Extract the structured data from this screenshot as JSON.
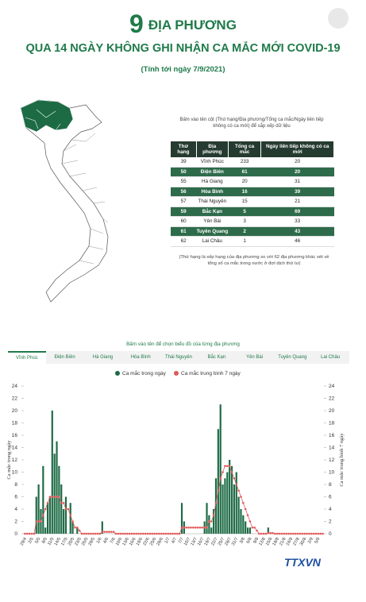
{
  "header": {
    "number": "9",
    "title_rest": "ĐỊA PHƯƠNG",
    "subtitle": "QUA 14 NGÀY KHÔNG GHI NHẬN CA MẮC MỚI COVID-19",
    "date": "(Tính tới ngày 7/9/2021)"
  },
  "table": {
    "instruction": "Bấm vào tên cột (Thứ hạng/Địa phương/Tổng ca mắc/Ngày liên tiếp không có ca mới) để sắp xếp dữ liệu",
    "columns": [
      "Thứ hạng",
      "Địa phương",
      "Tổng ca mắc",
      "Ngày liên tiếp không có ca mới"
    ],
    "rows": [
      [
        39,
        "Vĩnh Phúc",
        233,
        20
      ],
      [
        50,
        "Điện Biên",
        61,
        20
      ],
      [
        55,
        "Hà Giang",
        20,
        31
      ],
      [
        56,
        "Hòa Bình",
        16,
        39
      ],
      [
        57,
        "Thái Nguyên",
        15,
        21
      ],
      [
        59,
        "Bắc Kạn",
        5,
        69
      ],
      [
        60,
        "Yên Bái",
        3,
        33
      ],
      [
        61,
        "Tuyên Quang",
        2,
        43
      ],
      [
        62,
        "Lai Châu",
        1,
        46
      ]
    ],
    "note": "(Thứ hạng là xếp hạng của địa phương so với 62 địa phương khác xét về tổng số ca mắc trong nước ở đợt dịch thứ tư)"
  },
  "chart_section": {
    "instruction": "Bấm vào tên để chọn biểu đồ của từng địa phương",
    "tabs": [
      "Vĩnh Phúc",
      "Điện Biên",
      "Hà Giang",
      "Hòa Bình",
      "Thái Nguyên",
      "Bắc Kạn",
      "Yên Bái",
      "Tuyên Quang",
      "Lai Châu"
    ]
  },
  "logo": "TTXVN",
  "chart_data": {
    "type": "bar",
    "ylabel": "Ca mắc trong ngày",
    "y2label": "Ca mắc trung bình 7 ngày",
    "categories": [
      "29/4",
      null,
      null,
      "2/5",
      null,
      null,
      "5/5",
      null,
      null,
      "8/5",
      null,
      null,
      "11/5",
      null,
      null,
      "14/5",
      null,
      null,
      "17/5",
      null,
      null,
      "20/5",
      null,
      null,
      "23/5",
      null,
      null,
      "26/5",
      null,
      null,
      "29/5",
      null,
      null,
      "1/6",
      null,
      null,
      "4/6",
      null,
      null,
      "7/6",
      null,
      null,
      "10/6",
      null,
      null,
      "13/6",
      null,
      null,
      "16/6",
      null,
      null,
      "19/6",
      null,
      null,
      "22/6",
      null,
      null,
      "25/6",
      null,
      null,
      "28/6",
      null,
      null,
      "1/7",
      null,
      null,
      "4/7",
      null,
      null,
      "7/7",
      null,
      null,
      "10/7",
      null,
      null,
      "13/7",
      null,
      null,
      "16/7",
      null,
      null,
      "19/7",
      null,
      null,
      "22/7",
      null,
      null,
      "25/7",
      null,
      null,
      "28/7",
      null,
      null,
      "31/7",
      null,
      null,
      "3/8",
      null,
      null,
      "6/8",
      null,
      null,
      "9/8",
      null,
      null,
      "12/8",
      null,
      null,
      "15/8",
      null,
      null,
      "18/8",
      null,
      null,
      "21/8",
      null,
      null,
      "24/8",
      null,
      null,
      "27/8",
      null,
      null,
      "30/8",
      null,
      null,
      "2/9",
      null,
      null,
      "5/9",
      null,
      null
    ],
    "series": [
      {
        "name": "Ca mắc trong ngày",
        "color": "#1d6b45",
        "type": "bar",
        "values": [
          0,
          0,
          0,
          0,
          0,
          6,
          8,
          4,
          11,
          1,
          5,
          6,
          20,
          13,
          15,
          11,
          8,
          4,
          6,
          0,
          5,
          2,
          0,
          1,
          0,
          0,
          0,
          0,
          0,
          0,
          0,
          0,
          0,
          0,
          2,
          0,
          0,
          0,
          0,
          0,
          0,
          0,
          0,
          0,
          0,
          0,
          0,
          0,
          0,
          0,
          0,
          0,
          0,
          0,
          0,
          0,
          0,
          0,
          0,
          0,
          0,
          0,
          0,
          0,
          0,
          0,
          0,
          0,
          0,
          5,
          2,
          0,
          0,
          0,
          0,
          0,
          0,
          0,
          0,
          2,
          5,
          3,
          1,
          4,
          9,
          17,
          21,
          8,
          9,
          10,
          12,
          11,
          8,
          10,
          6,
          4,
          3,
          2,
          1,
          1,
          0,
          0,
          0,
          0,
          0,
          0,
          0,
          1,
          0,
          0,
          0,
          0,
          0,
          0,
          0,
          0,
          0,
          0,
          0,
          0,
          0,
          0,
          0,
          0,
          0,
          0,
          0,
          0,
          0,
          0,
          0,
          0
        ]
      },
      {
        "name": "Ca mắc trung bình 7 ngày",
        "color": "#e05a5a",
        "type": "line",
        "axis": "y2",
        "values": [
          0,
          0,
          0,
          0,
          0,
          2,
          2,
          2,
          3,
          4,
          5,
          6,
          6,
          6,
          6,
          6,
          5,
          5,
          4,
          4,
          3,
          2,
          1,
          1,
          0.5,
          0,
          0,
          0,
          0,
          0,
          0,
          0,
          0,
          0,
          0.3,
          0.3,
          0.3,
          0.3,
          0.3,
          0.3,
          0,
          0,
          0,
          0,
          0,
          0,
          0,
          0,
          0,
          0,
          0,
          0,
          0,
          0,
          0,
          0,
          0,
          0,
          0,
          0,
          0,
          0,
          0,
          0,
          0,
          0,
          0,
          0,
          0,
          1,
          1,
          1,
          1,
          1,
          1,
          1,
          1,
          1,
          1,
          1,
          1,
          2,
          2,
          3,
          5,
          7,
          9,
          10,
          11,
          11,
          11,
          10,
          9,
          8,
          7,
          6,
          5,
          4,
          3,
          2,
          1,
          1,
          0.5,
          0,
          0,
          0,
          0,
          0.1,
          0.1,
          0.1,
          0,
          0,
          0,
          0,
          0,
          0,
          0,
          0,
          0,
          0,
          0,
          0,
          0,
          0,
          0,
          0,
          0,
          0,
          0,
          0,
          0,
          0
        ]
      }
    ],
    "ylim": [
      0,
      24
    ],
    "yticks": [
      0,
      2,
      4,
      6,
      8,
      10,
      12,
      14,
      16,
      18,
      20,
      22,
      24
    ],
    "y2lim": [
      0,
      24
    ],
    "y2ticks": [
      0,
      2,
      4,
      6,
      8,
      10,
      12,
      14,
      16,
      18,
      20,
      22,
      24
    ],
    "grid": false,
    "legend": "top"
  }
}
